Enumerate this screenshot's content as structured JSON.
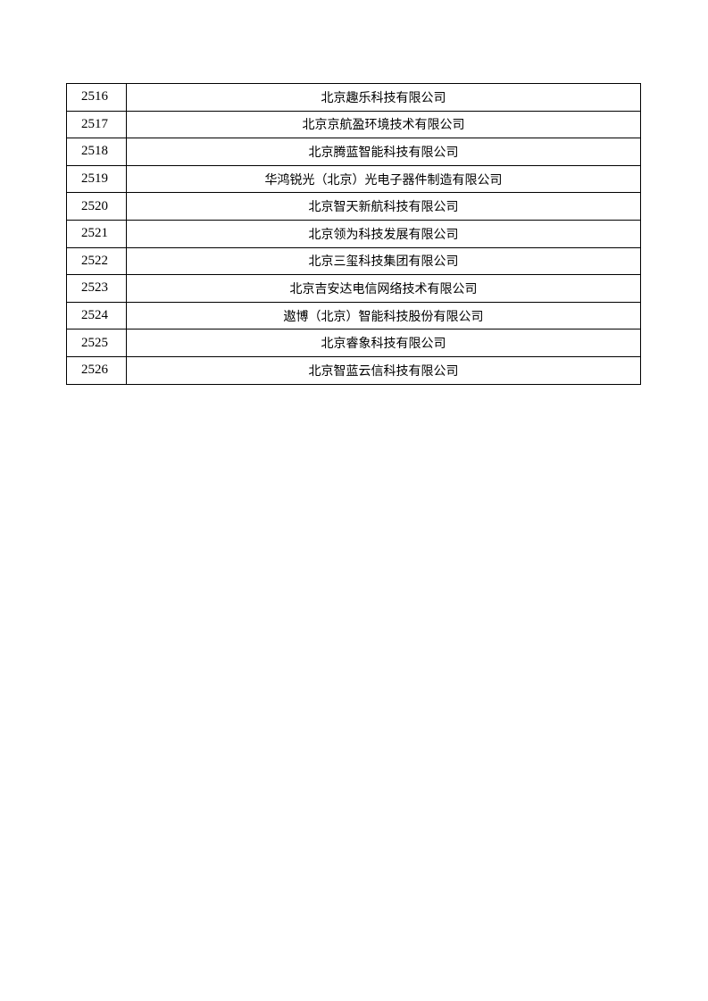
{
  "rows": [
    {
      "no": "2516",
      "name": "北京趣乐科技有限公司"
    },
    {
      "no": "2517",
      "name": "北京京航盈环境技术有限公司"
    },
    {
      "no": "2518",
      "name": "北京腾蓝智能科技有限公司"
    },
    {
      "no": "2519",
      "name": "华鸿锐光（北京）光电子器件制造有限公司"
    },
    {
      "no": "2520",
      "name": "北京智天新航科技有限公司"
    },
    {
      "no": "2521",
      "name": "北京领为科技发展有限公司"
    },
    {
      "no": "2522",
      "name": "北京三玺科技集团有限公司"
    },
    {
      "no": "2523",
      "name": "北京吉安达电信网络技术有限公司"
    },
    {
      "no": "2524",
      "name": "遨博（北京）智能科技股份有限公司"
    },
    {
      "no": "2525",
      "name": "北京睿象科技有限公司"
    },
    {
      "no": "2526",
      "name": "北京智蓝云信科技有限公司"
    }
  ]
}
